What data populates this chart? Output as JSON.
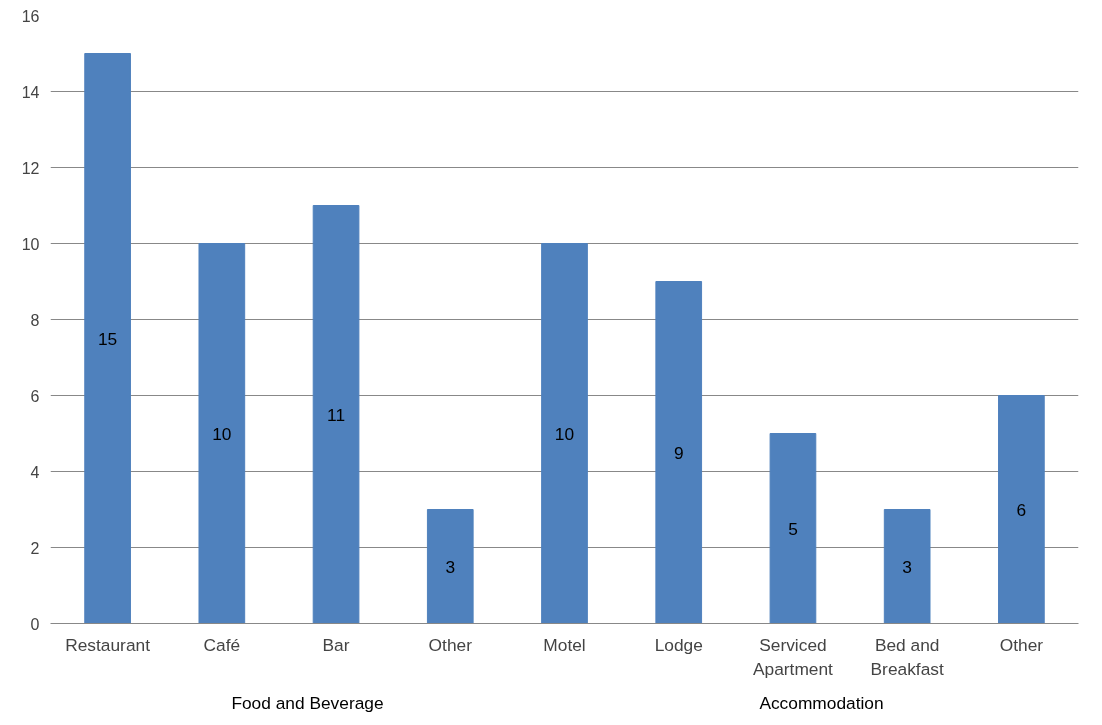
{
  "chart_data": {
    "type": "bar",
    "categories": [
      "Restaurant",
      "Café",
      "Bar",
      "Other",
      "Motel",
      "Lodge",
      "Serviced Apartment",
      "Bed and Breakfast",
      "Other"
    ],
    "values": [
      15,
      10,
      11,
      3,
      10,
      9,
      5,
      3,
      6
    ],
    "color": "#4f81bd",
    "ylim": [
      0,
      16
    ],
    "yticks": [
      0,
      2,
      4,
      6,
      8,
      10,
      12,
      14,
      16
    ],
    "grid": "y",
    "data_labels": true,
    "annotations": [
      "Food and Beverage",
      "Accommodation"
    ]
  }
}
